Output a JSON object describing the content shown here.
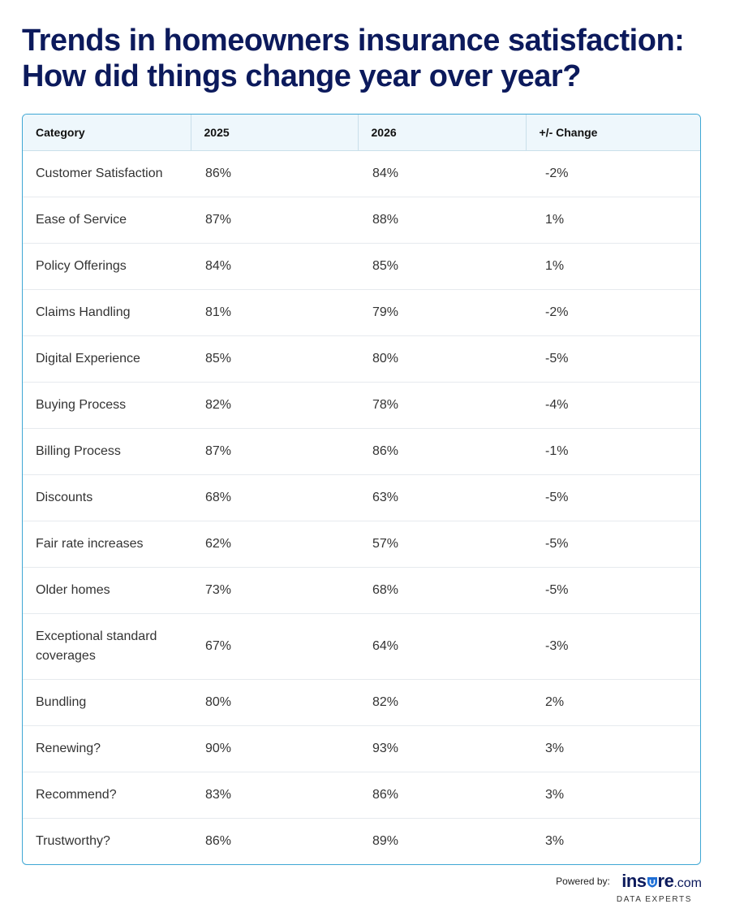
{
  "title": {
    "line1": "Trends in homeowners insurance satisfaction:",
    "line2": "How did things change year over year?"
  },
  "chart_data": {
    "type": "table",
    "columns": [
      "Category",
      "2025",
      "2026",
      "+/- Change"
    ],
    "rows": [
      {
        "category": "Customer Satisfaction",
        "y2025": "86%",
        "y2026": "84%",
        "change": "-2%"
      },
      {
        "category": "Ease of Service",
        "y2025": "87%",
        "y2026": "88%",
        "change": "1%"
      },
      {
        "category": "Policy Offerings",
        "y2025": "84%",
        "y2026": "85%",
        "change": "1%"
      },
      {
        "category": "Claims Handling",
        "y2025": "81%",
        "y2026": "79%",
        "change": "-2%"
      },
      {
        "category": "Digital Experience",
        "y2025": "85%",
        "y2026": "80%",
        "change": "-5%"
      },
      {
        "category": "Buying Process",
        "y2025": "82%",
        "y2026": "78%",
        "change": "-4%"
      },
      {
        "category": "Billing Process",
        "y2025": "87%",
        "y2026": "86%",
        "change": "-1%"
      },
      {
        "category": "Discounts",
        "y2025": "68%",
        "y2026": "63%",
        "change": "-5%"
      },
      {
        "category": "Fair rate increases",
        "y2025": "62%",
        "y2026": "57%",
        "change": "-5%"
      },
      {
        "category": "Older homes",
        "y2025": "73%",
        "y2026": "68%",
        "change": "-5%"
      },
      {
        "category": "Exceptional standard coverages",
        "y2025": "67%",
        "y2026": "64%",
        "change": "-3%"
      },
      {
        "category": "Bundling",
        "y2025": "80%",
        "y2026": "82%",
        "change": "2%"
      },
      {
        "category": "Renewing?",
        "y2025": "90%",
        "y2026": "93%",
        "change": "3%"
      },
      {
        "category": "Recommend?",
        "y2025": "83%",
        "y2026": "86%",
        "change": "3%"
      },
      {
        "category": "Trustworthy?",
        "y2025": "86%",
        "y2026": "89%",
        "change": "3%"
      }
    ]
  },
  "footer": {
    "powered_by": "Powered by:",
    "logo_pre": "ins",
    "logo_post": "re",
    "logo_suffix": ".com",
    "logo_icon": "shield-u-icon",
    "tagline": "DATA EXPERTS"
  },
  "colors": {
    "title": "#0c1a5c",
    "border": "#3fa7d4",
    "header_bg": "#eef7fc"
  }
}
